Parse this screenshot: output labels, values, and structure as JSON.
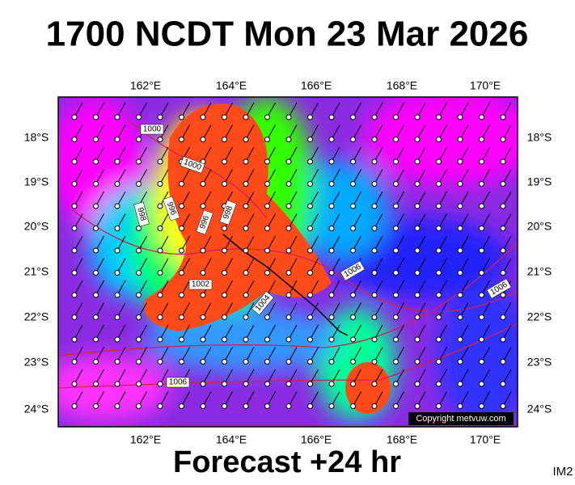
{
  "header": {
    "title": "1700 NCDT Mon 23 Mar 2026"
  },
  "map": {
    "longitude_labels": [
      "162°E",
      "164°E",
      "166°E",
      "168°E",
      "170°E"
    ],
    "latitude_labels": [
      "18°S",
      "19°S",
      "20°S",
      "21°S",
      "22°S",
      "23°S",
      "24°S"
    ],
    "contour_labels": [
      "1000",
      "1000",
      "998",
      "996",
      "996",
      "998",
      "1002",
      "1004",
      "1006",
      "1006",
      "1006"
    ],
    "copyright": "Copyright metvuw.com"
  },
  "footer": {
    "forecast": "Forecast +24 hr",
    "image_id": "IM2"
  }
}
